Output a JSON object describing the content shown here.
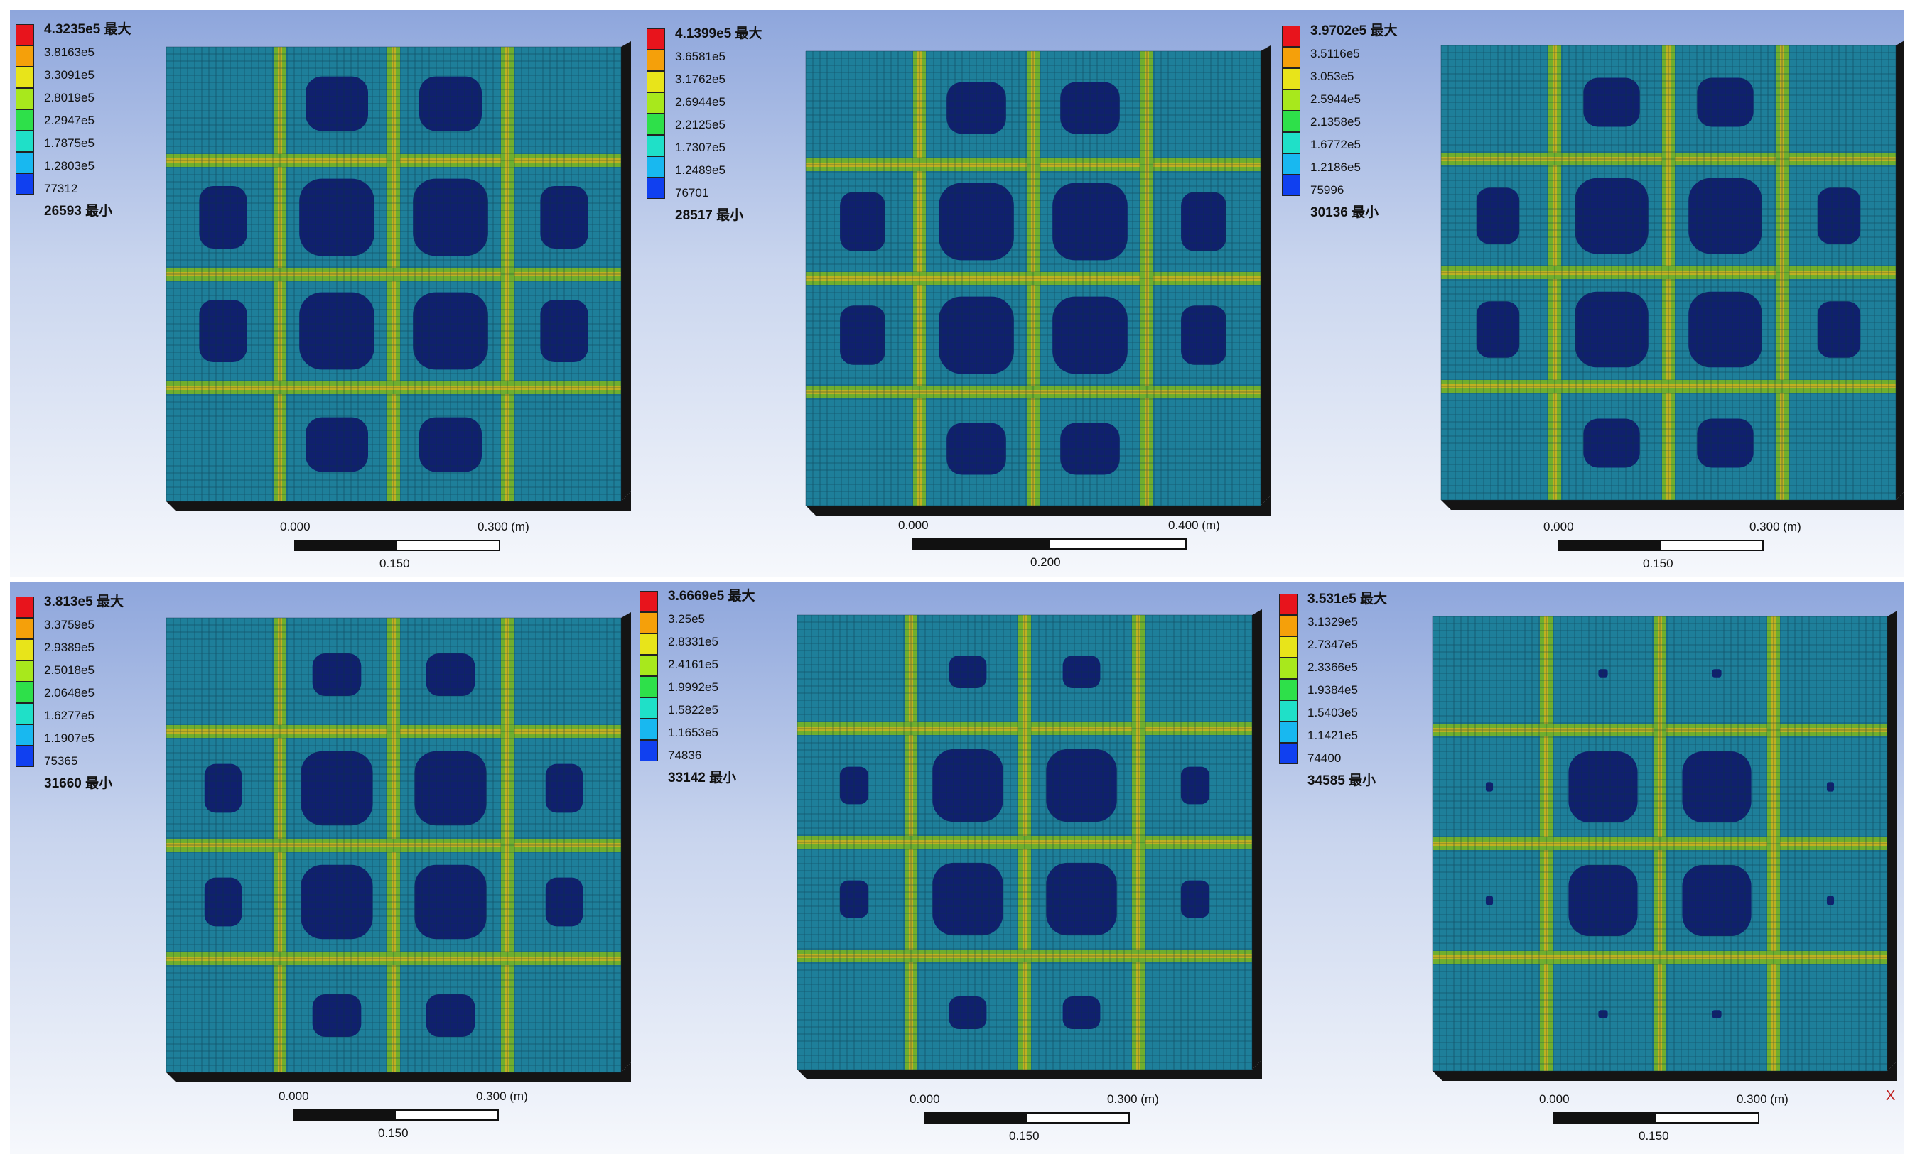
{
  "panels": [
    {
      "legend": [
        "4.3235e5 最大",
        "3.8163e5",
        "3.3091e5",
        "2.8019e5",
        "2.2947e5",
        "1.7875e5",
        "1.2803e5",
        "77312",
        "26593 最小"
      ],
      "scale": {
        "start": "0.000",
        "end": "0.300 (m)",
        "mid": "0.150"
      }
    },
    {
      "legend": [
        "4.1399e5 最大",
        "3.6581e5",
        "3.1762e5",
        "2.6944e5",
        "2.2125e5",
        "1.7307e5",
        "1.2489e5",
        "76701",
        "28517 最小"
      ],
      "scale": {
        "start": "0.000",
        "end": "0.400 (m)",
        "mid": "0.200"
      }
    },
    {
      "legend": [
        "3.9702e5 最大",
        "3.5116e5",
        "3.053e5",
        "2.5944e5",
        "2.1358e5",
        "1.6772e5",
        "1.2186e5",
        "75996",
        "30136 最小"
      ],
      "scale": {
        "start": "0.000",
        "end": "0.300 (m)",
        "mid": "0.150"
      }
    },
    {
      "legend": [
        "3.813e5 最大",
        "3.3759e5",
        "2.9389e5",
        "2.5018e5",
        "2.0648e5",
        "1.6277e5",
        "1.1907e5",
        "75365",
        "31660 最小"
      ],
      "scale": {
        "start": "0.000",
        "end": "0.300 (m)",
        "mid": "0.150"
      }
    },
    {
      "legend": [
        "3.6669e5 最大",
        "3.25e5",
        "2.8331e5",
        "2.4161e5",
        "1.9992e5",
        "1.5822e5",
        "1.1653e5",
        "74836",
        "33142 最小"
      ],
      "scale": {
        "start": "0.000",
        "end": "0.300 (m)",
        "mid": "0.150"
      }
    },
    {
      "legend": [
        "3.531e5 最大",
        "3.1329e5",
        "2.7347e5",
        "2.3366e5",
        "1.9384e5",
        "1.5403e5",
        "1.1421e5",
        "74400",
        "34585 最小"
      ],
      "scale": {
        "start": "0.000",
        "end": "0.300 (m)",
        "mid": "0.150"
      }
    }
  ],
  "legend_colors": [
    "#e8141c",
    "#f5a00a",
    "#e8e41a",
    "#a8e81c",
    "#2ee04a",
    "#1fe0c8",
    "#18b8f0",
    "#1040f0"
  ],
  "contour_colors": {
    "base": "#1e7f9a",
    "mesh": "#0c3346",
    "low": "#10206e",
    "rib": "#6fae2e",
    "rib_hot": "#c8b020",
    "side": "#141414"
  },
  "axis_marker": "X"
}
